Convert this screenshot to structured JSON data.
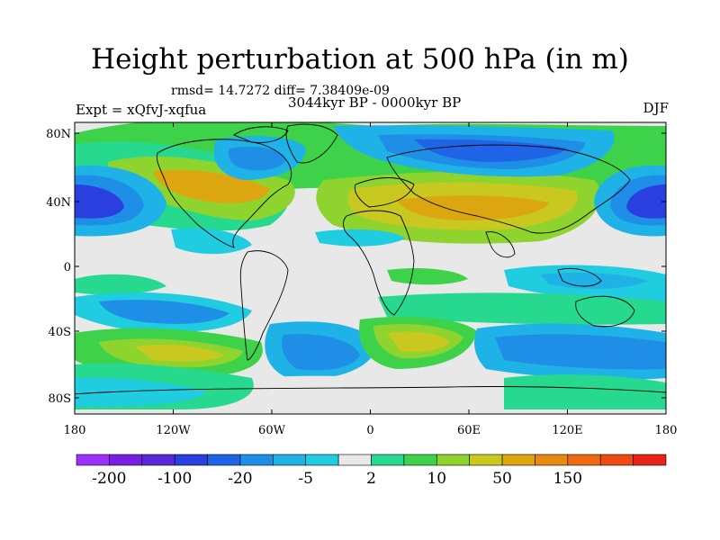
{
  "title": "Height perturbation at 500 hPa (in m)",
  "stats": "rmsd= 14.7272 diff= 7.38409e-09",
  "period": "3044kyr BP - 0000kyr BP",
  "experiment": "Expt = xQfvJ-xqfua",
  "season": "DJF",
  "lat_ticks": [
    "80N",
    "40N",
    "0",
    "40S",
    "80S"
  ],
  "lon_ticks": [
    "180",
    "120W",
    "60W",
    "0",
    "60E",
    "120E",
    "180"
  ],
  "colorbar": {
    "colors": [
      "#9b30ff",
      "#7a1fe0",
      "#5a2ad8",
      "#2a3fe0",
      "#1f63e6",
      "#1f8ee6",
      "#1fb2e6",
      "#20cce0",
      "#e8e8e8",
      "#26d98e",
      "#3ed24a",
      "#8fd42e",
      "#c8c820",
      "#dca610",
      "#e88a10",
      "#ee6a10",
      "#ef4a12",
      "#e8241a"
    ],
    "labels": [
      "-200",
      "-100",
      "-20",
      "-5",
      "2",
      "10",
      "50",
      "150"
    ]
  }
}
